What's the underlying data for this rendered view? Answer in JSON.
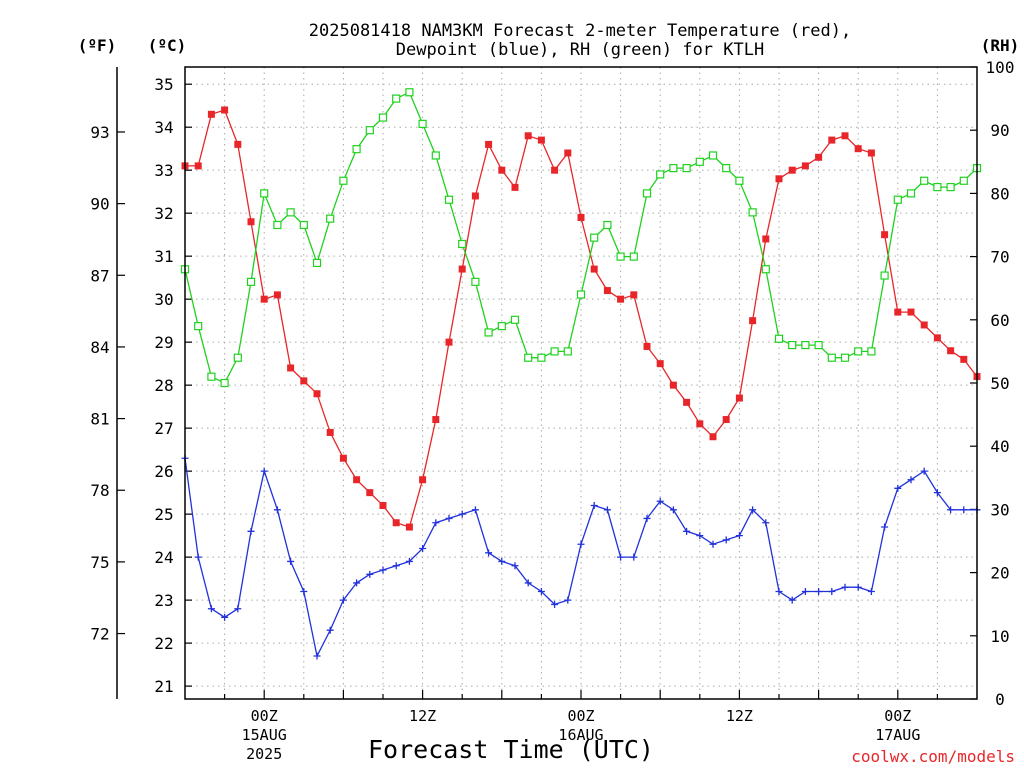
{
  "chart_data": {
    "type": "line",
    "title_line1": "2025081418 NAM3KM Forecast 2-meter Temperature (red),",
    "title_line2": "Dewpoint (blue), RH (green) for KTLH",
    "left_outer_unit": "(ºF)",
    "left_unit": "(ºC)",
    "right_unit": "(RH)",
    "xlabel": "Forecast Time (UTC)",
    "credit": "coolwx.com/models",
    "x_ticks": [
      {
        "hour": 6,
        "label": "00Z",
        "sub1": "15AUG",
        "sub2": "2025"
      },
      {
        "hour": 18,
        "label": "12Z",
        "sub1": "",
        "sub2": ""
      },
      {
        "hour": 30,
        "label": "00Z",
        "sub1": "16AUG",
        "sub2": ""
      },
      {
        "hour": 42,
        "label": "12Z",
        "sub1": "",
        "sub2": ""
      },
      {
        "hour": 54,
        "label": "00Z",
        "sub1": "17AUG",
        "sub2": ""
      }
    ],
    "xlim": [
      0,
      60
    ],
    "ylim_c": [
      20.7,
      35.4
    ],
    "ylim_rh": [
      0,
      100
    ],
    "yticks_c": [
      21,
      22,
      23,
      24,
      25,
      26,
      27,
      28,
      29,
      30,
      31,
      32,
      33,
      34,
      35
    ],
    "yticks_f": [
      72,
      75,
      78,
      81,
      84,
      87,
      90,
      93
    ],
    "yticks_rh": [
      0,
      10,
      20,
      30,
      40,
      50,
      60,
      70,
      80,
      90,
      100
    ],
    "grid": true,
    "series": [
      {
        "name": "2-meter Temperature",
        "color": "#e8262a",
        "marker": "filled-square",
        "axis": "C",
        "values": [
          33.1,
          33.1,
          34.3,
          34.4,
          33.6,
          31.8,
          30.0,
          30.1,
          28.4,
          28.1,
          27.8,
          26.9,
          26.3,
          25.8,
          25.5,
          25.2,
          24.8,
          24.7,
          25.8,
          27.2,
          29.0,
          30.7,
          32.4,
          33.6,
          33.0,
          32.6,
          33.8,
          33.7,
          33.0,
          33.4,
          31.9,
          30.7,
          30.2,
          30.0,
          30.1,
          28.9,
          28.5,
          28.0,
          27.6,
          27.1,
          26.8,
          27.2,
          27.7,
          29.5,
          31.4,
          32.8,
          33.0,
          33.1,
          33.3,
          33.7,
          33.8,
          33.5,
          33.4,
          31.5,
          29.7,
          29.7,
          29.4,
          29.1,
          28.8,
          28.6,
          28.2
        ]
      },
      {
        "name": "Dewpoint",
        "color": "#2231dc",
        "marker": "plus",
        "axis": "C",
        "values": [
          26.3,
          24.0,
          22.8,
          22.6,
          22.8,
          24.6,
          26.0,
          25.1,
          23.9,
          23.2,
          21.7,
          22.3,
          23.0,
          23.4,
          23.6,
          23.7,
          23.8,
          23.9,
          24.2,
          24.8,
          24.9,
          25.0,
          25.1,
          24.1,
          23.9,
          23.8,
          23.4,
          23.2,
          22.9,
          23.0,
          24.3,
          25.2,
          25.1,
          24.0,
          24.0,
          24.9,
          25.3,
          25.1,
          24.6,
          24.5,
          24.3,
          24.4,
          24.5,
          25.1,
          24.8,
          23.2,
          23.0,
          23.2,
          23.2,
          23.2,
          23.3,
          23.3,
          23.2,
          24.7,
          25.6,
          25.8,
          26.0,
          25.5,
          25.1,
          25.1,
          25.1
        ]
      },
      {
        "name": "RH",
        "color": "#1fd21f",
        "marker": "open-square",
        "axis": "RH",
        "values": [
          68,
          59,
          51,
          50,
          54,
          66,
          80,
          75,
          77,
          75,
          69,
          76,
          82,
          87,
          90,
          92,
          95,
          96,
          91,
          86,
          79,
          72,
          66,
          58,
          59,
          60,
          54,
          54,
          55,
          55,
          64,
          73,
          75,
          70,
          70,
          80,
          83,
          84,
          84,
          85,
          86,
          84,
          82,
          77,
          68,
          57,
          56,
          56,
          56,
          54,
          54,
          55,
          55,
          67,
          79,
          80,
          82,
          81,
          81,
          82,
          84
        ]
      }
    ]
  }
}
